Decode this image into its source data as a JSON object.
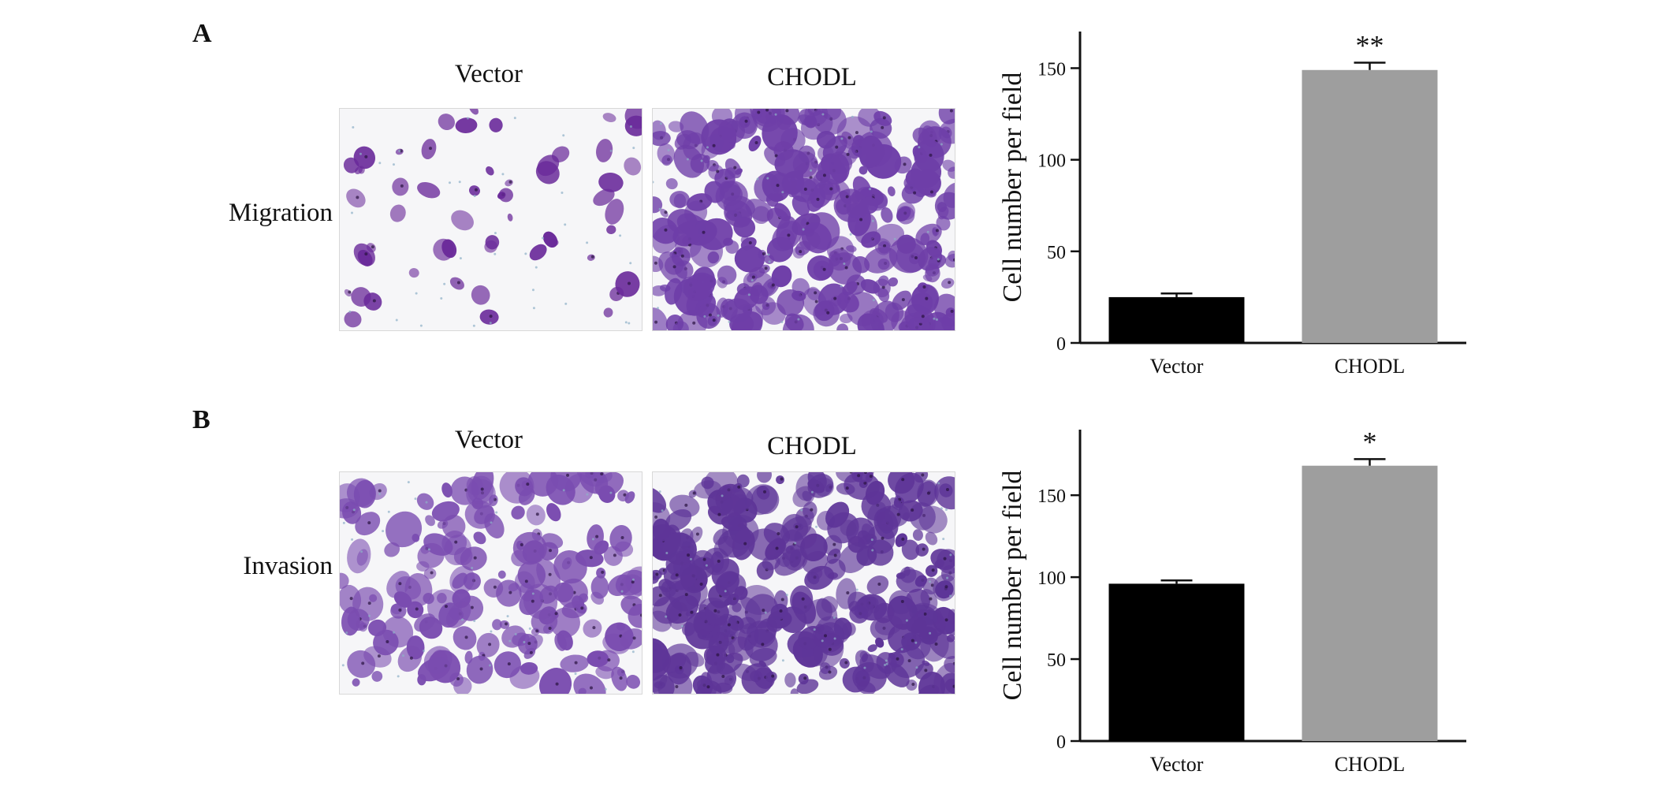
{
  "panels": [
    {
      "letter": "A",
      "row_label": "Migration",
      "image_titles": [
        "Vector",
        "CHODL"
      ],
      "micrographs": [
        {
          "alt": "Vector migration micrograph",
          "density": "sparse",
          "stain_color": "#6a2a9a"
        },
        {
          "alt": "CHODL migration micrograph",
          "density": "dense",
          "stain_color": "#6e3ea8"
        }
      ]
    },
    {
      "letter": "B",
      "row_label": "Invasion",
      "image_titles": [
        "Vector",
        "CHODL"
      ],
      "micrographs": [
        {
          "alt": "Vector invasion micrograph",
          "density": "medium",
          "stain_color": "#7a4cb0"
        },
        {
          "alt": "CHODL invasion micrograph",
          "density": "dense",
          "stain_color": "#5e3598"
        }
      ]
    }
  ],
  "chart_data": [
    {
      "type": "bar",
      "categories": [
        "Vector",
        "CHODL"
      ],
      "values": [
        25,
        149
      ],
      "errors": [
        2,
        4
      ],
      "colors": [
        "#000000",
        "#9e9e9e"
      ],
      "significance": [
        "",
        "**"
      ],
      "ylabel": "Cell number per field",
      "ylim": [
        0,
        170
      ],
      "yticks": [
        0,
        50,
        100,
        150
      ],
      "grid": false
    },
    {
      "type": "bar",
      "categories": [
        "Vector",
        "CHODL"
      ],
      "values": [
        96,
        168
      ],
      "errors": [
        2,
        4
      ],
      "colors": [
        "#000000",
        "#9e9e9e"
      ],
      "significance": [
        "",
        "*"
      ],
      "ylabel": "Cell number per field",
      "ylim": [
        0,
        190
      ],
      "yticks": [
        0,
        50,
        100,
        150
      ],
      "grid": false
    }
  ]
}
